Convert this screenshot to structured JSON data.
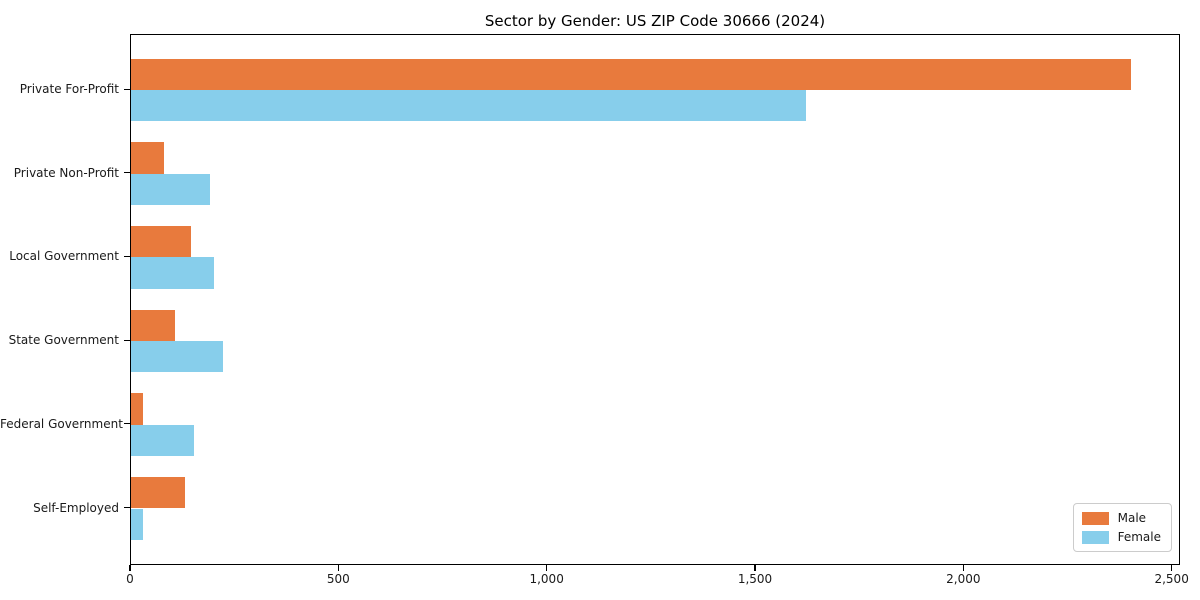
{
  "chart_data": {
    "type": "bar",
    "orientation": "horizontal",
    "title": "Sector by Gender: US ZIP Code 30666 (2024)",
    "categories": [
      "Private For-Profit",
      "Private Non-Profit",
      "Local Government",
      "State Government",
      "Federal Government",
      "Self-Employed"
    ],
    "series": [
      {
        "name": "Male",
        "color": "#e87a3d",
        "values": [
          2400,
          78,
          145,
          105,
          28,
          130
        ]
      },
      {
        "name": "Female",
        "color": "#87ceeb",
        "values": [
          1620,
          190,
          198,
          220,
          152,
          29
        ]
      }
    ],
    "xlabel": "",
    "ylabel": "",
    "xlim": [
      0,
      2520
    ],
    "x_ticks": [
      {
        "value": 0,
        "label": "0"
      },
      {
        "value": 500,
        "label": "500"
      },
      {
        "value": 1000,
        "label": "1,000"
      },
      {
        "value": 1500,
        "label": "1,500"
      },
      {
        "value": 2000,
        "label": "2,000"
      },
      {
        "value": 2500,
        "label": "2,500"
      }
    ],
    "grid": false,
    "legend": {
      "position": "lower right"
    },
    "colors": {
      "axis": "#000000",
      "tick_text": "#1a1a1a",
      "background": "#ffffff"
    }
  }
}
